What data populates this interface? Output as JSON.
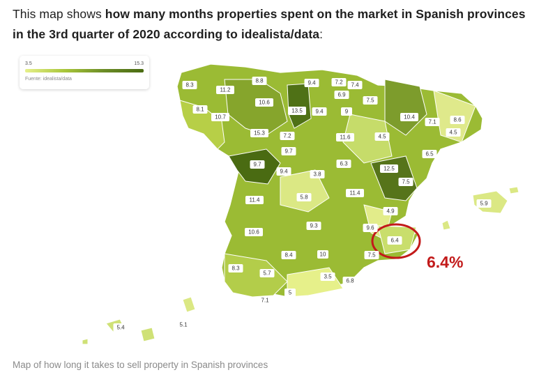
{
  "intro": {
    "lead": "This map shows ",
    "bold": "how many months properties spent on the market in Spanish provinces in the 3rd quarter of 2020 according to idealista/data",
    "tail": ":"
  },
  "legend": {
    "min": "3.5",
    "max": "15.3",
    "source": "Fuente: idealista/data"
  },
  "annotation": {
    "text": "6.4%",
    "color": "#c21a1a"
  },
  "caption": "Map of how long it takes to sell property in Spanish provinces",
  "colors": {
    "low": "#e6f08a",
    "high": "#4a6b12",
    "highlight": "#c21a1a"
  },
  "provinces": [
    {
      "v": 8.3
    },
    {
      "v": 11.2
    },
    {
      "v": 8.8
    },
    {
      "v": 9.4
    },
    {
      "v": 7.2
    },
    {
      "v": 7.4
    },
    {
      "v": 6.9
    },
    {
      "v": 8.1
    },
    {
      "v": 10.6
    },
    {
      "v": 13.5
    },
    {
      "v": 9.4
    },
    {
      "v": 9
    },
    {
      "v": 7.5
    },
    {
      "v": 10.4
    },
    {
      "v": 7.1
    },
    {
      "v": 8.6
    },
    {
      "v": 10.7
    },
    {
      "v": 15.3
    },
    {
      "v": 7.2
    },
    {
      "v": 11.6
    },
    {
      "v": 4.5
    },
    {
      "v": 4.5
    },
    {
      "v": 9.7
    },
    {
      "v": 6.5
    },
    {
      "v": 9.7
    },
    {
      "v": 9.4
    },
    {
      "v": 3.8
    },
    {
      "v": 6.3
    },
    {
      "v": 12.5
    },
    {
      "v": 7.5
    },
    {
      "v": 5.9
    },
    {
      "v": 11.4
    },
    {
      "v": 5.8
    },
    {
      "v": 11.4
    },
    {
      "v": 4.9
    },
    {
      "v": 10.6
    },
    {
      "v": 9.3
    },
    {
      "v": 9.6
    },
    {
      "v": 6.4
    },
    {
      "v": 8.4
    },
    {
      "v": 10
    },
    {
      "v": 7.5
    },
    {
      "v": 8.3
    },
    {
      "v": 5.7
    },
    {
      "v": 3.5
    },
    {
      "v": 6.8
    },
    {
      "v": 5
    },
    {
      "v": 7.1
    },
    {
      "v": 5.4
    },
    {
      "v": 5.1
    }
  ]
}
